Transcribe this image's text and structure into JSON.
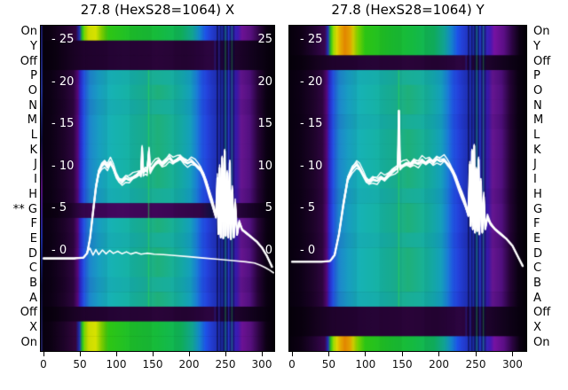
{
  "titles": {
    "left": "27.8 (HexS28=1064) X",
    "right": "27.8 (HexS28=1064) Y"
  },
  "side_labels": [
    "On",
    "Y",
    "Off",
    "P",
    "O",
    "N",
    "M",
    "L",
    "K",
    "J",
    "I",
    "H",
    "G",
    "F",
    "E",
    "D",
    "C",
    "B",
    "A",
    "Off",
    "X",
    "On"
  ],
  "row_marker": {
    "index": 12,
    "text": "**"
  },
  "profiles": {
    "bright_x": [
      [
        0,
        "#06000c"
      ],
      [
        0.045,
        "#0d0114"
      ],
      [
        0.1,
        "#1e0329"
      ],
      [
        0.15,
        "#33063f"
      ],
      [
        0.165,
        "#1d2fb5"
      ],
      [
        0.178,
        "#27c41c"
      ],
      [
        0.19,
        "#8fdc00"
      ],
      [
        0.205,
        "#d9e800"
      ],
      [
        0.235,
        "#e4ef00"
      ],
      [
        0.26,
        "#86d700"
      ],
      [
        0.29,
        "#2ec614"
      ],
      [
        0.38,
        "#1fc02a"
      ],
      [
        0.5,
        "#16bb3c"
      ],
      [
        0.6,
        "#10b75c"
      ],
      [
        0.65,
        "#12ad9a"
      ],
      [
        0.68,
        "#158ad2"
      ],
      [
        0.705,
        "#1d55e8"
      ],
      [
        0.725,
        "#2440d8"
      ],
      [
        0.76,
        "#1e2fae"
      ],
      [
        0.8,
        "#2233c0"
      ],
      [
        0.845,
        "#3f18b0"
      ],
      [
        0.862,
        "#6c1294"
      ],
      [
        0.9,
        "#57107e"
      ],
      [
        0.935,
        "#2c0542"
      ],
      [
        0.965,
        "#0e0116"
      ],
      [
        1,
        "#030006"
      ]
    ],
    "bright_y": [
      [
        0,
        "#06000c"
      ],
      [
        0.05,
        "#0e0115"
      ],
      [
        0.1,
        "#200330"
      ],
      [
        0.15,
        "#3a0650"
      ],
      [
        0.163,
        "#2130b8"
      ],
      [
        0.175,
        "#2cc41a"
      ],
      [
        0.188,
        "#a8e000"
      ],
      [
        0.2,
        "#e8e400"
      ],
      [
        0.215,
        "#f2b400"
      ],
      [
        0.235,
        "#ef8e00"
      ],
      [
        0.255,
        "#f0a800"
      ],
      [
        0.27,
        "#d8d800"
      ],
      [
        0.29,
        "#76d200"
      ],
      [
        0.32,
        "#2cc414"
      ],
      [
        0.42,
        "#1dbf2c"
      ],
      [
        0.52,
        "#15ba40"
      ],
      [
        0.61,
        "#10b560"
      ],
      [
        0.655,
        "#12ab9e"
      ],
      [
        0.685,
        "#1586d4"
      ],
      [
        0.71,
        "#1d52e8"
      ],
      [
        0.73,
        "#2440d6"
      ],
      [
        0.77,
        "#1e2fb0"
      ],
      [
        0.81,
        "#2236c2"
      ],
      [
        0.848,
        "#4418b4"
      ],
      [
        0.865,
        "#7612a2"
      ],
      [
        0.905,
        "#5c0f86"
      ],
      [
        0.94,
        "#2c0544"
      ],
      [
        0.97,
        "#0d0115"
      ],
      [
        1,
        "#030006"
      ]
    ],
    "mid": [
      [
        0,
        "#07000e"
      ],
      [
        0.05,
        "#0e0117"
      ],
      [
        0.1,
        "#1d0329"
      ],
      [
        0.14,
        "#2e0540"
      ],
      [
        0.158,
        "#560879"
      ],
      [
        0.168,
        "#2b23c6"
      ],
      [
        0.185,
        "#2452e2"
      ],
      [
        0.21,
        "#1f8ed8"
      ],
      [
        0.25,
        "#1aa8cc"
      ],
      [
        0.3,
        "#17b2b4"
      ],
      [
        0.38,
        "#16b3a4"
      ],
      [
        0.46,
        "#1ab28e"
      ],
      [
        0.5,
        "#1fb07a"
      ],
      [
        0.55,
        "#1ab18e"
      ],
      [
        0.6,
        "#16b2aa"
      ],
      [
        0.64,
        "#17a9c6"
      ],
      [
        0.665,
        "#1b88dc"
      ],
      [
        0.69,
        "#2158e8"
      ],
      [
        0.715,
        "#2440da"
      ],
      [
        0.755,
        "#1e2fae"
      ],
      [
        0.795,
        "#2233bc"
      ],
      [
        0.84,
        "#3a17a6"
      ],
      [
        0.858,
        "#661690"
      ],
      [
        0.895,
        "#521080"
      ],
      [
        0.93,
        "#260438"
      ],
      [
        0.965,
        "#0c0114"
      ],
      [
        1,
        "#030006"
      ]
    ],
    "mid2": [
      [
        0,
        "#07000e"
      ],
      [
        0.05,
        "#0d0116"
      ],
      [
        0.1,
        "#1b0227"
      ],
      [
        0.14,
        "#2c053e"
      ],
      [
        0.158,
        "#500873"
      ],
      [
        0.168,
        "#2a22c0"
      ],
      [
        0.185,
        "#2350dc"
      ],
      [
        0.21,
        "#1f86d2"
      ],
      [
        0.25,
        "#1aa0c8"
      ],
      [
        0.3,
        "#17acb2"
      ],
      [
        0.4,
        "#16aea6"
      ],
      [
        0.48,
        "#1aae94"
      ],
      [
        0.55,
        "#18ae9c"
      ],
      [
        0.6,
        "#15acae"
      ],
      [
        0.64,
        "#16a2c4"
      ],
      [
        0.665,
        "#1a82d8"
      ],
      [
        0.69,
        "#2054e4"
      ],
      [
        0.715,
        "#233cd4"
      ],
      [
        0.755,
        "#1d2ca8"
      ],
      [
        0.795,
        "#2130b6"
      ],
      [
        0.84,
        "#3815a0"
      ],
      [
        0.858,
        "#5f148a"
      ],
      [
        0.895,
        "#4c0e78"
      ],
      [
        0.93,
        "#240336"
      ],
      [
        0.965,
        "#0b0113"
      ],
      [
        1,
        "#030006"
      ]
    ],
    "dark": [
      [
        0,
        "#05000a"
      ],
      [
        0.06,
        "#0a0110"
      ],
      [
        0.12,
        "#16021f"
      ],
      [
        0.2,
        "#220330"
      ],
      [
        0.35,
        "#260436"
      ],
      [
        0.5,
        "#2a0439"
      ],
      [
        0.62,
        "#250434"
      ],
      [
        0.72,
        "#2c0540"
      ],
      [
        0.78,
        "#260438"
      ],
      [
        0.85,
        "#1c032a"
      ],
      [
        0.92,
        "#10021a"
      ],
      [
        1,
        "#040008"
      ]
    ],
    "suppressed": [
      [
        0,
        "#06000b"
      ],
      [
        0.07,
        "#0c0113"
      ],
      [
        0.13,
        "#1c0328"
      ],
      [
        0.17,
        "#300546"
      ],
      [
        0.22,
        "#3e0759"
      ],
      [
        0.35,
        "#44085f"
      ],
      [
        0.5,
        "#400659"
      ],
      [
        0.6,
        "#3a0652"
      ],
      [
        0.68,
        "#340648"
      ],
      [
        0.73,
        "#101040"
      ],
      [
        0.76,
        "#320a52"
      ],
      [
        0.82,
        "#2e0546"
      ],
      [
        0.88,
        "#1e0330"
      ],
      [
        0.94,
        "#0e0118"
      ],
      [
        1,
        "#040008"
      ]
    ]
  },
  "stripes": [
    {
      "f": 0.746,
      "c": "#2233cc",
      "a": 0.35,
      "w": 1.5
    },
    {
      "f": 0.757,
      "c": "#070738",
      "a": 0.55,
      "w": 2
    },
    {
      "f": 0.764,
      "c": "#2b3bdd",
      "a": 0.5,
      "w": 1.5
    },
    {
      "f": 0.77,
      "c": "#070738",
      "a": 0.5,
      "w": 2
    },
    {
      "f": 0.784,
      "c": "#070738",
      "a": 0.55,
      "w": 3
    },
    {
      "f": 0.791,
      "c": "#15b049",
      "a": 0.45,
      "w": 1.5
    },
    {
      "f": 0.798,
      "c": "#070738",
      "a": 0.5,
      "w": 2
    },
    {
      "f": 0.805,
      "c": "#2b3bdd",
      "a": 0.45,
      "w": 1.5
    },
    {
      "f": 0.812,
      "c": "#070738",
      "a": 0.5,
      "w": 2
    },
    {
      "f": 0.819,
      "c": "#15b049",
      "a": 0.4,
      "w": 1.5
    },
    {
      "f": 0.826,
      "c": "#070738",
      "a": 0.45,
      "w": 2
    }
  ],
  "green_line": {
    "f": 0.462,
    "c": "#2ee04e",
    "a": 0.5,
    "w": 1.5,
    "row_start": 3,
    "row_end": 19
  },
  "column_blocks": [
    {
      "f0": 0.19,
      "f1": 0.285,
      "a": 0.05
    },
    {
      "f0": 0.38,
      "f1": 0.475,
      "a": 0.04
    },
    {
      "f0": 0.57,
      "f1": 0.665,
      "a": 0.05
    },
    {
      "f0": 0.665,
      "f1": 0.7,
      "a": 0.03
    }
  ],
  "edge_column": [
    [
      0,
      "#1a1a66"
    ],
    [
      0.2,
      "#223399"
    ],
    [
      0.35,
      "#0d0d3d"
    ],
    [
      0.5,
      "#5a1080"
    ],
    [
      0.65,
      "#1b2fae"
    ],
    [
      0.8,
      "#0c0c38"
    ],
    [
      1,
      "#202060"
    ]
  ],
  "chart_data": [
    {
      "type": "heatmap",
      "title": "27.8 (HexS28=1064) X",
      "x_ticks": [
        0,
        50,
        100,
        150,
        200,
        250,
        300
      ],
      "x_range": [
        0,
        317
      ],
      "y_range": [
        -11.9,
        26.7
      ],
      "y_tick_values": [
        25,
        20,
        15,
        10,
        5,
        0
      ],
      "y_tick_labels_inner": [
        "- 25",
        "- 20",
        "- 15",
        "- 10",
        "- 5",
        "- 0"
      ],
      "right_edge_labels": [
        "25",
        "20",
        "15",
        "10",
        "5",
        "0"
      ],
      "row_variants": [
        "bright_x",
        "dark",
        "dark",
        "mid2",
        "mid",
        "mid2",
        "mid",
        "mid",
        "mid",
        "mid",
        "mid",
        "mid2",
        "suppressed",
        "mid",
        "mid2",
        "mid",
        "mid",
        "mid2",
        "mid",
        "dark",
        "bright_x",
        "bright_x"
      ],
      "marked_row": 12,
      "strand_offsets": [
        0,
        0.32,
        -0.28,
        0.6,
        -0.5
      ],
      "line_main": [
        [
          0,
          -0.9
        ],
        [
          42,
          -0.9
        ],
        [
          55,
          -0.8
        ],
        [
          60,
          -0.3
        ],
        [
          64,
          1.5
        ],
        [
          68,
          4.5
        ],
        [
          72,
          7.5
        ],
        [
          76,
          9.4
        ],
        [
          80,
          10.1
        ],
        [
          84,
          10.4
        ],
        [
          88,
          9.9
        ],
        [
          92,
          10.5
        ],
        [
          96,
          9.8
        ],
        [
          100,
          8.9
        ],
        [
          104,
          8.4
        ],
        [
          108,
          8.2
        ],
        [
          113,
          8.6
        ],
        [
          118,
          8.4
        ],
        [
          123,
          8.7
        ],
        [
          128,
          9.0
        ],
        [
          132,
          9.3
        ],
        [
          134,
          9.1
        ],
        [
          135.5,
          12.2
        ],
        [
          137,
          9.3
        ],
        [
          140,
          9.6
        ],
        [
          142.5,
          9.4
        ],
        [
          145,
          11.8
        ],
        [
          146.5,
          9.5
        ],
        [
          150,
          9.9
        ],
        [
          154,
          10.4
        ],
        [
          158,
          10.7
        ],
        [
          163,
          10.3
        ],
        [
          168,
          10.6
        ],
        [
          173,
          11.0
        ],
        [
          178,
          10.5
        ],
        [
          183,
          10.8
        ],
        [
          188,
          11.1
        ],
        [
          193,
          10.7
        ],
        [
          198,
          10.4
        ],
        [
          203,
          10.6
        ],
        [
          208,
          10.3
        ],
        [
          212,
          10.0
        ],
        [
          216,
          9.7
        ],
        [
          220,
          9.0
        ],
        [
          224,
          8.0
        ],
        [
          228,
          6.8
        ],
        [
          232,
          5.6
        ],
        [
          235,
          4.6
        ],
        [
          237,
          4.0
        ],
        [
          239,
          8.6
        ],
        [
          240.5,
          2.0
        ],
        [
          242,
          9.8
        ],
        [
          243.5,
          1.6
        ],
        [
          245.5,
          11.0
        ],
        [
          247,
          1.5
        ],
        [
          249,
          11.8
        ],
        [
          250.5,
          1.8
        ],
        [
          252.5,
          9.2
        ],
        [
          254,
          1.6
        ],
        [
          256,
          10.4
        ],
        [
          257.5,
          1.4
        ],
        [
          259.5,
          7.2
        ],
        [
          261.5,
          1.6
        ],
        [
          263.5,
          5.6
        ],
        [
          266,
          1.9
        ],
        [
          269,
          3.4
        ],
        [
          273,
          2.5
        ],
        [
          279,
          2.1
        ],
        [
          286,
          1.6
        ],
        [
          293,
          1.1
        ],
        [
          300,
          0.4
        ],
        [
          307,
          -0.6
        ],
        [
          314,
          -1.9
        ]
      ],
      "line_secondary": [
        [
          60,
          -0.1
        ],
        [
          64,
          0.3
        ],
        [
          68,
          -0.5
        ],
        [
          72,
          0.15
        ],
        [
          76,
          -0.45
        ],
        [
          81,
          0.1
        ],
        [
          86,
          -0.35
        ],
        [
          91,
          0.05
        ],
        [
          96,
          -0.3
        ],
        [
          102,
          -0.05
        ],
        [
          108,
          -0.35
        ],
        [
          114,
          -0.12
        ],
        [
          120,
          -0.38
        ],
        [
          127,
          -0.18
        ],
        [
          134,
          -0.4
        ],
        [
          142,
          -0.28
        ],
        [
          152,
          -0.4
        ],
        [
          165,
          -0.45
        ],
        [
          180,
          -0.55
        ],
        [
          200,
          -0.7
        ],
        [
          220,
          -0.85
        ],
        [
          240,
          -1.0
        ],
        [
          260,
          -1.15
        ],
        [
          278,
          -1.3
        ],
        [
          290,
          -1.45
        ],
        [
          298,
          -1.7
        ],
        [
          305,
          -2.0
        ],
        [
          311,
          -2.3
        ],
        [
          316,
          -2.6
        ]
      ]
    },
    {
      "type": "heatmap",
      "title": "27.8 (HexS28=1064) Y",
      "x_ticks": [
        0,
        50,
        100,
        150,
        200,
        250,
        300
      ],
      "x_range": [
        0,
        320
      ],
      "y_range": [
        -11.9,
        26.7
      ],
      "y_tick_values": [
        25,
        20,
        15,
        10,
        5,
        0
      ],
      "y_tick_labels_inner": [
        "- 25",
        "- 20",
        "- 15",
        "- 10",
        "- 5",
        "- 0"
      ],
      "right_edge_labels": [],
      "row_variants": [
        "bright_y",
        "bright_y",
        "dark",
        "mid2",
        "mid",
        "mid",
        "mid2",
        "mid",
        "mid",
        "mid",
        "mid",
        "mid2",
        "mid",
        "mid",
        "mid2",
        "mid",
        "mid",
        "mid",
        "mid2",
        "dark",
        "dark",
        "bright_y"
      ],
      "marked_row": null,
      "strand_offsets": [
        0,
        0.32,
        -0.28,
        0.6,
        -0.5
      ],
      "line_main": [
        [
          0,
          -1.3
        ],
        [
          40,
          -1.3
        ],
        [
          52,
          -1.2
        ],
        [
          58,
          -0.5
        ],
        [
          64,
          2.0
        ],
        [
          70,
          5.5
        ],
        [
          76,
          8.6
        ],
        [
          82,
          9.7
        ],
        [
          88,
          10.2
        ],
        [
          92,
          9.8
        ],
        [
          97,
          9.0
        ],
        [
          101,
          8.4
        ],
        [
          105,
          8.2
        ],
        [
          110,
          8.5
        ],
        [
          116,
          8.3
        ],
        [
          121,
          8.7
        ],
        [
          126,
          8.5
        ],
        [
          131,
          9.0
        ],
        [
          136,
          9.4
        ],
        [
          140,
          9.6
        ],
        [
          144,
          9.8
        ],
        [
          145.5,
          16.6
        ],
        [
          147,
          9.9
        ],
        [
          151,
          10.1
        ],
        [
          156,
          10.4
        ],
        [
          161,
          10.2
        ],
        [
          166,
          10.6
        ],
        [
          172,
          10.3
        ],
        [
          177,
          10.7
        ],
        [
          182,
          10.4
        ],
        [
          187,
          10.8
        ],
        [
          192,
          10.5
        ],
        [
          197,
          10.9
        ],
        [
          202,
          10.6
        ],
        [
          207,
          10.8
        ],
        [
          211,
          10.4
        ],
        [
          215,
          10.0
        ],
        [
          219,
          9.4
        ],
        [
          223,
          8.6
        ],
        [
          227,
          7.6
        ],
        [
          231,
          6.6
        ],
        [
          235,
          5.6
        ],
        [
          238,
          4.8
        ],
        [
          240,
          4.2
        ],
        [
          242,
          10.2
        ],
        [
          243,
          3.0
        ],
        [
          245,
          11.8
        ],
        [
          246,
          2.6
        ],
        [
          248,
          12.4
        ],
        [
          249,
          2.2
        ],
        [
          251,
          9.6
        ],
        [
          252,
          2.4
        ],
        [
          254,
          10.8
        ],
        [
          255,
          2.0
        ],
        [
          257,
          8.2
        ],
        [
          259,
          2.2
        ],
        [
          261,
          6.4
        ],
        [
          263,
          2.6
        ],
        [
          266,
          4.0
        ],
        [
          270,
          3.2
        ],
        [
          276,
          2.6
        ],
        [
          284,
          2.0
        ],
        [
          292,
          1.4
        ],
        [
          300,
          0.6
        ],
        [
          307,
          -0.6
        ],
        [
          314,
          -1.8
        ]
      ],
      "line_secondary": null
    }
  ]
}
